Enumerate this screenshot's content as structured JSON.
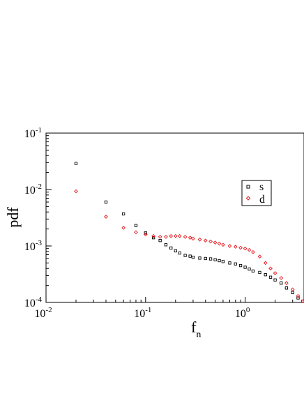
{
  "chart_data": {
    "type": "scatter",
    "title": "",
    "xlabel": {
      "base": "f",
      "subscript": "n"
    },
    "ylabel": "pdf",
    "xscale": "log",
    "yscale": "log",
    "xlim": [
      0.01,
      3.9
    ],
    "ylim": [
      0.0001,
      0.1
    ],
    "grid": false,
    "legend": {
      "placement": "top-right",
      "entries": [
        "s",
        "d"
      ]
    },
    "x_ticks": [
      {
        "value": 0.01,
        "base": "10",
        "exp": "-2"
      },
      {
        "value": 0.1,
        "base": "10",
        "exp": "-1"
      },
      {
        "value": 1,
        "base": "10",
        "exp": "0"
      }
    ],
    "y_ticks": [
      {
        "value": 0.0001,
        "base": "10",
        "exp": "-4"
      },
      {
        "value": 0.001,
        "base": "10",
        "exp": "-3"
      },
      {
        "value": 0.01,
        "base": "10",
        "exp": "-2"
      },
      {
        "value": 0.1,
        "base": "10",
        "exp": "-1"
      }
    ],
    "series": [
      {
        "name": "s",
        "color": "#000000",
        "marker": "square",
        "x": [
          0.02,
          0.04,
          0.06,
          0.08,
          0.1,
          0.12,
          0.14,
          0.16,
          0.18,
          0.2,
          0.22,
          0.25,
          0.28,
          0.3,
          0.35,
          0.4,
          0.45,
          0.5,
          0.55,
          0.6,
          0.7,
          0.8,
          0.9,
          1.0,
          1.1,
          1.2,
          1.4,
          1.6,
          1.8,
          2.0,
          2.3,
          2.6,
          3.0,
          3.4,
          3.8
        ],
        "y": [
          0.029,
          0.006,
          0.0037,
          0.0023,
          0.0017,
          0.0014,
          0.00125,
          0.00105,
          0.00092,
          0.00082,
          0.00075,
          0.00068,
          0.00066,
          0.00063,
          0.00061,
          0.0006,
          0.00059,
          0.00057,
          0.00055,
          0.00053,
          0.0005,
          0.00048,
          0.00045,
          0.00042,
          0.00039,
          0.00036,
          0.00034,
          0.00031,
          0.00028,
          0.00025,
          0.00022,
          0.00018,
          0.00015,
          0.00012,
          0.000105
        ]
      },
      {
        "name": "d",
        "color": "#e8141c",
        "marker": "diamond",
        "x": [
          0.02,
          0.04,
          0.06,
          0.08,
          0.1,
          0.12,
          0.14,
          0.16,
          0.18,
          0.2,
          0.22,
          0.25,
          0.28,
          0.3,
          0.35,
          0.4,
          0.45,
          0.5,
          0.55,
          0.6,
          0.7,
          0.8,
          0.9,
          1.0,
          1.1,
          1.2,
          1.4,
          1.6,
          1.8,
          2.0,
          2.3,
          2.6,
          3.0,
          3.4,
          3.8
        ],
        "y": [
          0.0093,
          0.0033,
          0.0021,
          0.00175,
          0.0016,
          0.0015,
          0.00145,
          0.00145,
          0.0015,
          0.0015,
          0.0015,
          0.00145,
          0.0014,
          0.00135,
          0.0013,
          0.00125,
          0.0012,
          0.00115,
          0.0011,
          0.00105,
          0.001,
          0.00097,
          0.00093,
          0.0009,
          0.00085,
          0.00078,
          0.00065,
          0.0005,
          0.0004,
          0.00033,
          0.00027,
          0.00022,
          0.00017,
          0.00013,
          0.000105
        ]
      }
    ]
  }
}
